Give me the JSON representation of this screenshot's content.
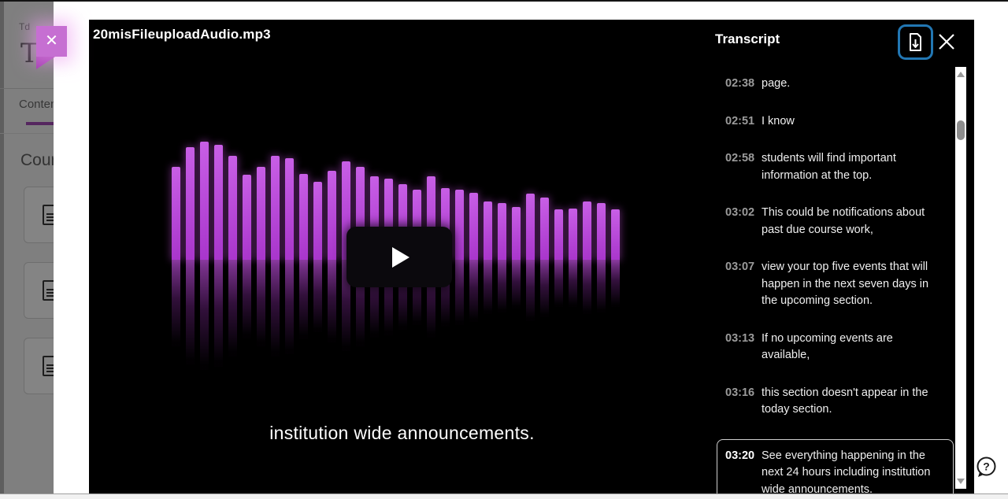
{
  "background_page": {
    "mini_label": "Td",
    "title_partial": "T",
    "tab_label": "Conten",
    "section_heading": "Cour",
    "tour_close_icon": "✕",
    "cards": [
      {
        "icon": "document-icon"
      },
      {
        "icon": "document-icon"
      },
      {
        "icon": "document-icon"
      }
    ]
  },
  "player": {
    "title": "20misFileuploadAudio.mp3",
    "caption": "institution wide announcements.",
    "waveform_bar_heights": [
      118,
      143,
      150,
      146,
      132,
      108,
      118,
      132,
      129,
      109,
      99,
      113,
      125,
      118,
      106,
      103,
      96,
      89,
      106,
      91,
      89,
      85,
      74,
      72,
      67,
      84,
      79,
      64,
      65,
      74,
      72,
      64
    ],
    "reflection_scale": 0.93,
    "colors": {
      "bar_bright": "#b444d6",
      "bar_reflection": "#7a2a8a",
      "background": "#000000"
    }
  },
  "transcript": {
    "title": "Transcript",
    "download_button": {
      "icon": "download-document-icon",
      "accent": "#2277b3"
    },
    "close_button": {
      "icon": "close-icon"
    },
    "entries": [
      {
        "time": "02:38",
        "text": "page.",
        "active": false
      },
      {
        "time": "02:51",
        "text": "I know",
        "active": false
      },
      {
        "time": "02:58",
        "text": "students will find important information at the top.",
        "active": false
      },
      {
        "time": "03:02",
        "text": "This could be notifications about past due course work,",
        "active": false
      },
      {
        "time": "03:07",
        "text": "view your top five events that will happen in the next seven days in the upcoming section.",
        "active": false
      },
      {
        "time": "03:13",
        "text": "If no upcoming events are available,",
        "active": false
      },
      {
        "time": "03:16",
        "text": "this section doesn't appear in the today section.",
        "active": false
      },
      {
        "time": "03:20",
        "text": "See everything happening in the next 24 hours including institution wide announcements.",
        "active": true
      }
    ]
  },
  "help": {
    "icon": "help-question-icon"
  }
}
